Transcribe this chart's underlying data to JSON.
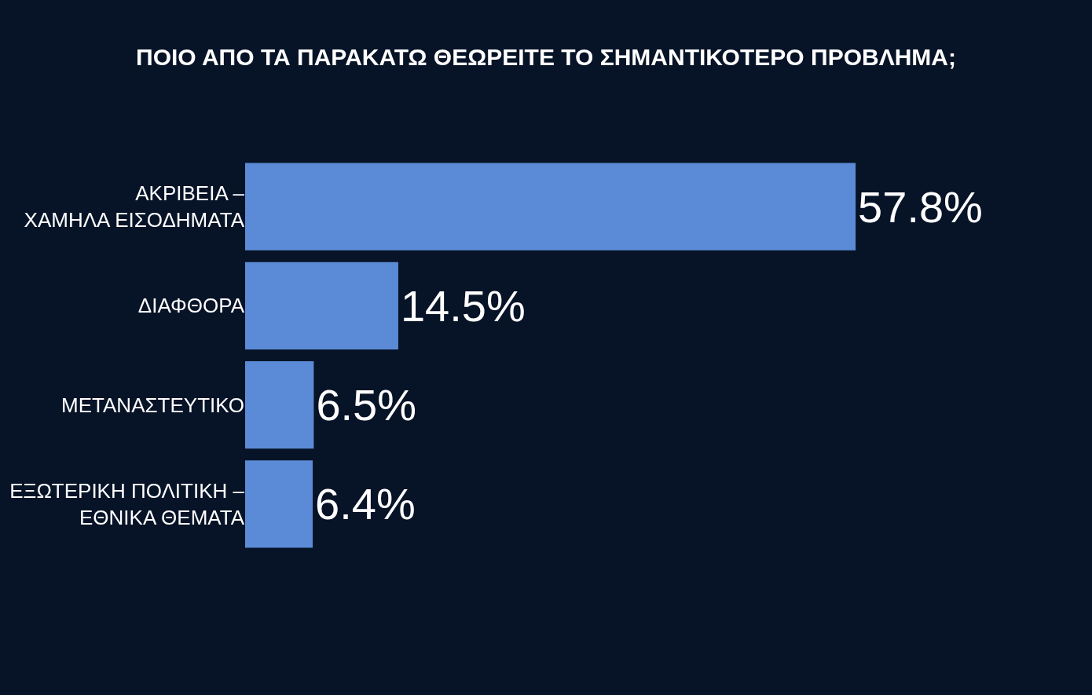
{
  "chart_data": {
    "type": "bar",
    "orientation": "horizontal",
    "title": "ΠΟΙΟ ΑΠΟ ΤΑ ΠΑΡΑΚΑΤΩ ΘΕΩΡΕΙΤΕ ΤΟ ΣΗΜΑΝΤΙΚΟΤΕΡΟ ΠΡΟΒΛΗΜΑ;",
    "categories": [
      "ΑΚΡΙΒΕΙΑ –\nΧΑΜΗΛΑ ΕΙΣΟΔΗΜΑΤΑ",
      "ΔΙΑΦΘΟΡΑ",
      "ΜΕΤΑΝΑΣΤΕΥΤΙΚΟ",
      "ΕΞΩΤΕΡΙΚΗ ΠΟΛΙΤΙΚΗ –\nΕΘΝΙΚΑ ΘΕΜΑΤΑ"
    ],
    "values": [
      57.8,
      14.5,
      6.5,
      6.4
    ],
    "value_labels": [
      "57.8%",
      "14.5%",
      "6.5%",
      "6.4%"
    ],
    "color": "#5b8bd6",
    "tick_labels": "y",
    "grid": false,
    "legend": false
  }
}
